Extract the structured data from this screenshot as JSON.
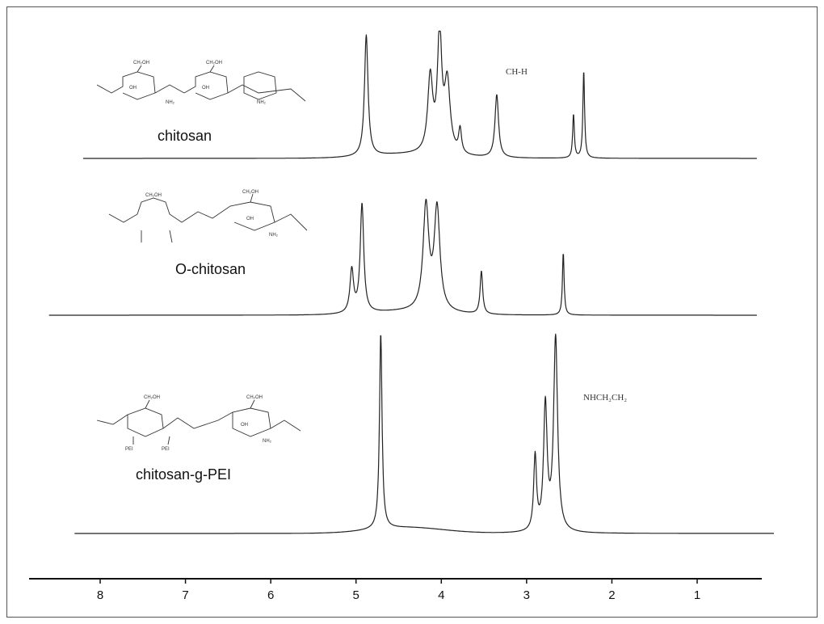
{
  "chart_data": {
    "type": "line",
    "title": "",
    "xlabel": "",
    "ylabel": "",
    "xlim": [
      8.6,
      0.2
    ],
    "x_reversed": true,
    "x_ticks": [
      "8",
      "7",
      "6",
      "5",
      "4",
      "3",
      "2",
      "1"
    ],
    "x_tick_values": [
      8,
      7,
      6,
      5,
      4,
      3,
      2,
      1
    ],
    "grid": false,
    "legend": "none",
    "series": [
      {
        "name": "chitosan",
        "baseline_ppm_range": [
          8.2,
          0.3
        ],
        "peaks": [
          {
            "ppm": 4.88,
            "height": 1.0,
            "width": 0.025
          },
          {
            "ppm": 4.13,
            "height": 0.62,
            "width": 0.035
          },
          {
            "ppm": 4.02,
            "height": 0.98,
            "width": 0.03
          },
          {
            "ppm": 3.93,
            "height": 0.58,
            "width": 0.04
          },
          {
            "ppm": 3.78,
            "height": 0.2,
            "width": 0.02
          },
          {
            "ppm": 3.35,
            "height": 0.52,
            "width": 0.025
          },
          {
            "ppm": 2.45,
            "height": 0.36,
            "width": 0.012
          },
          {
            "ppm": 2.33,
            "height": 0.72,
            "width": 0.012
          }
        ],
        "annotation": "CH-H"
      },
      {
        "name": "O-chitosan",
        "baseline_ppm_range": [
          8.6,
          0.3
        ],
        "peaks": [
          {
            "ppm": 5.05,
            "height": 0.38,
            "width": 0.025
          },
          {
            "ppm": 4.93,
            "height": 0.96,
            "width": 0.025
          },
          {
            "ppm": 4.18,
            "height": 0.92,
            "width": 0.04
          },
          {
            "ppm": 4.05,
            "height": 0.9,
            "width": 0.04
          },
          {
            "ppm": 3.53,
            "height": 0.38,
            "width": 0.018
          },
          {
            "ppm": 2.57,
            "height": 0.55,
            "width": 0.012
          }
        ]
      },
      {
        "name": "chitosan-g-PEI",
        "baseline_ppm_range": [
          8.3,
          0.1
        ],
        "peaks": [
          {
            "ppm": 4.71,
            "height": 1.0,
            "width": 0.018
          },
          {
            "ppm": 2.9,
            "height": 0.38,
            "width": 0.02
          },
          {
            "ppm": 2.78,
            "height": 0.64,
            "width": 0.025
          },
          {
            "ppm": 2.66,
            "height": 0.99,
            "width": 0.028
          }
        ],
        "annotation": "NHCH₂CH₂"
      }
    ]
  },
  "labels": {
    "chitosan": "chitosan",
    "o_chitosan": "O-chitosan",
    "chitosan_g_pei": "chitosan-g-PEI",
    "annot_ch": "CH-H",
    "annot_nh": "NHCH₂CH₂"
  }
}
